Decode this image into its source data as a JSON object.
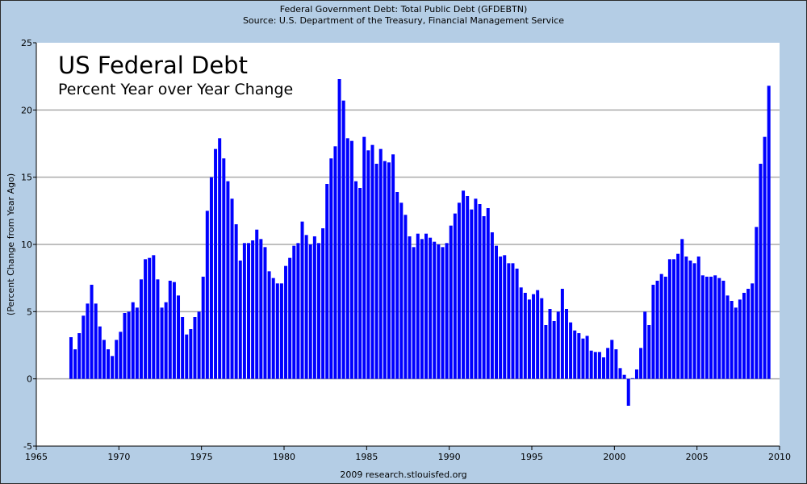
{
  "header": {
    "line1": "Federal Government Debt: Total Public Debt (GFDEBTN)",
    "line2": "Source: U.S. Department of the Treasury, Financial Management Service"
  },
  "footer": "2009 research.stlouisfed.org",
  "colors": {
    "bars": "#0000ff",
    "background": "#b4cde5",
    "plot": "#ffffff",
    "grid": "#aaaaaa"
  },
  "chart_data": {
    "type": "bar",
    "title": "US Federal Debt",
    "subtitle": "Percent Year over Year Change",
    "ylabel": "(Percent Change from Year Ago)",
    "xlabel": "",
    "xlim": [
      1965,
      2010
    ],
    "ylim": [
      -5,
      25
    ],
    "xticks": [
      "1965",
      "1970",
      "1975",
      "1980",
      "1985",
      "1990",
      "1995",
      "2000",
      "2005",
      "2010"
    ],
    "yticks": [
      "25",
      "20",
      "15",
      "10",
      "5",
      "0",
      "-5"
    ],
    "grid": "horizontal",
    "start": "1967Q1",
    "frequency": "quarterly",
    "values": [
      3.1,
      2.2,
      3.4,
      4.7,
      5.6,
      7.0,
      5.6,
      3.9,
      2.9,
      2.2,
      1.7,
      2.9,
      3.5,
      4.9,
      5.0,
      5.7,
      5.3,
      7.4,
      8.9,
      9.0,
      9.2,
      7.4,
      5.3,
      5.7,
      7.3,
      7.2,
      6.2,
      4.6,
      3.3,
      3.7,
      4.6,
      5.0,
      7.6,
      12.5,
      15.0,
      17.1,
      17.9,
      16.4,
      14.7,
      13.4,
      11.5,
      8.8,
      10.1,
      10.1,
      10.3,
      11.1,
      10.4,
      9.8,
      8.0,
      7.5,
      7.1,
      7.1,
      8.4,
      9.0,
      9.9,
      10.1,
      11.7,
      10.7,
      10.0,
      10.6,
      10.1,
      11.2,
      14.5,
      16.4,
      17.3,
      22.3,
      20.7,
      17.9,
      17.7,
      14.7,
      14.2,
      18.0,
      17.0,
      17.4,
      16.0,
      17.1,
      16.2,
      16.1,
      16.7,
      13.9,
      13.1,
      12.2,
      10.6,
      9.8,
      10.8,
      10.4,
      10.8,
      10.5,
      10.2,
      10.0,
      9.8,
      10.1,
      11.4,
      12.3,
      13.1,
      14.0,
      13.6,
      12.6,
      13.4,
      13.0,
      12.1,
      12.7,
      10.9,
      9.9,
      9.1,
      9.2,
      8.6,
      8.6,
      8.2,
      6.8,
      6.4,
      5.9,
      6.3,
      6.6,
      6.0,
      4.0,
      5.2,
      4.3,
      5.0,
      6.7,
      5.2,
      4.2,
      3.6,
      3.4,
      3.0,
      3.2,
      2.1,
      2.0,
      2.0,
      1.6,
      2.3,
      2.9,
      2.2,
      0.8,
      0.3,
      -2.0,
      0.05,
      0.7,
      2.3,
      5.0,
      4.0,
      7.0,
      7.3,
      7.8,
      7.6,
      8.9,
      8.9,
      9.3,
      10.4,
      9.1,
      8.8,
      8.6,
      9.1,
      7.7,
      7.6,
      7.6,
      7.7,
      7.5,
      7.3,
      6.2,
      5.8,
      5.3,
      5.9,
      6.4,
      6.7,
      7.1,
      11.3,
      16.0,
      18.0,
      21.8
    ]
  }
}
